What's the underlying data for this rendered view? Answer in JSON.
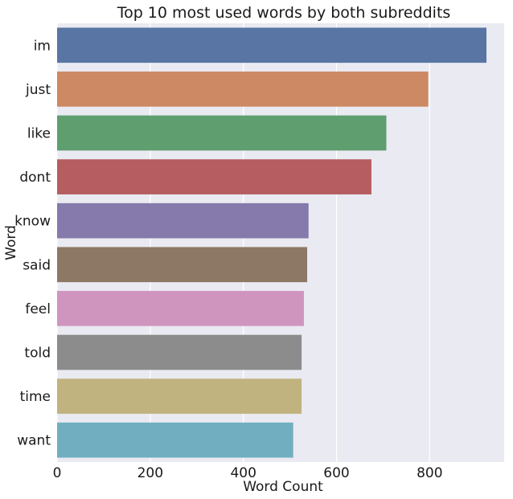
{
  "chart_data": {
    "type": "bar",
    "orientation": "horizontal",
    "title": "Top 10 most used words by both subreddits",
    "xlabel": "Word Count",
    "ylabel": "Word",
    "categories": [
      "im",
      "just",
      "like",
      "dont",
      "know",
      "said",
      "feel",
      "told",
      "time",
      "want"
    ],
    "values": [
      922,
      797,
      707,
      675,
      540,
      537,
      530,
      525,
      525,
      507
    ],
    "colors": [
      "#5875a4",
      "#cc8963",
      "#5f9e6e",
      "#b55d60",
      "#857aab",
      "#8d7866",
      "#d095bf",
      "#8c8c8c",
      "#c1b37f",
      "#71aec0"
    ],
    "xlim": [
      0,
      960
    ],
    "xticks": [
      0,
      200,
      400,
      600,
      800
    ],
    "grid": true,
    "legend": "none",
    "background": "#eaeaf2"
  }
}
